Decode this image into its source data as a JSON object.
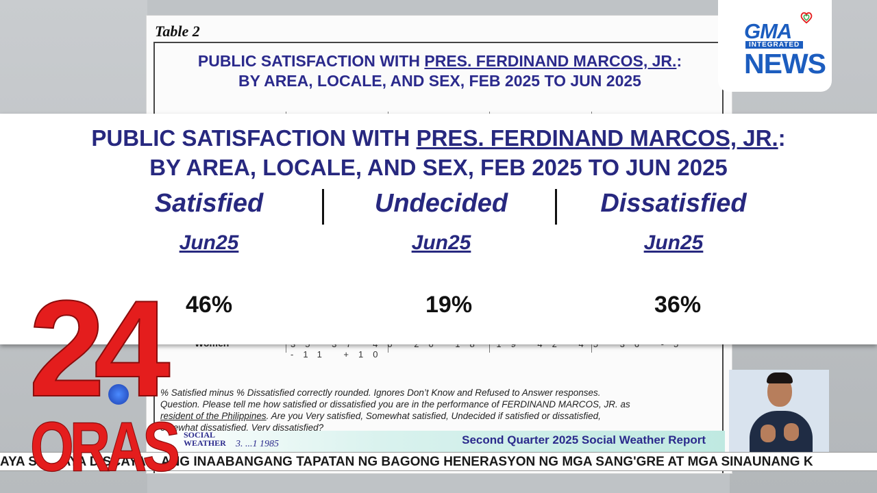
{
  "document": {
    "caption": "Table 2",
    "title_line1_prefix": "PUBLIC SATISFACTION WITH ",
    "title_line1_name": "PRES. FERDINAND MARCOS, JR.",
    "title_line1_suffix": ":",
    "title_line2": "BY AREA, LOCALE, AND SEX, FEB 2025 TO JUN 2025",
    "row_label": "Women",
    "row_values": "35  37  40  20  18  19  42  45  36  -5  -11  +10",
    "note_line1": "% Satisfied minus % Dissatisfied correctly rounded. Ignores Don’t Know and Refused to Answer responses.",
    "note_line2": "Question. Please tell me how satisfied or dissatisfied you are in the performance of FERDINAND MARCOS, JR. as",
    "note_line3_underlined": "resident of the Philippines",
    "note_line3_rest": ". Are you Very satisfied, Somewhat satisfied, Undecided if satisfied or dissatisfied,",
    "note_line4": "omewhat dissatisfied, Very dissatisfied?",
    "footer_title": "Second Quarter 2025 Social Weather Report",
    "footer_logo_line1": "SOCIAL",
    "footer_logo_line2": "WEATHER",
    "footer_signature": "3. ...1 1985"
  },
  "gma_logo": {
    "line1": "GMA",
    "line2": "INTEGRATED",
    "line3": "NEWS"
  },
  "overlay": {
    "title_line1_prefix": "PUBLIC SATISFACTION WITH ",
    "title_line1_name": "PRES. FERDINAND MARCOS, JR.",
    "title_line1_suffix": ":",
    "title_line2": "BY AREA, LOCALE, AND SEX, FEB 2025 TO JUN 2025",
    "columns": [
      {
        "label": "Satisfied",
        "period": "Jun25",
        "value": "46%"
      },
      {
        "label": "Undecided",
        "period": "Jun25",
        "value": "19%"
      },
      {
        "label": "Dissatisfied",
        "period": "Jun25",
        "value": "36%"
      }
    ]
  },
  "program_logo": {
    "number": "24",
    "word": "ORAS"
  },
  "ticker": {
    "items": [
      "AYA SA",
      "AYA DISCAYA",
      "ANG INAABANGANG TAPATAN NG BAGONG HENERASYON NG MGA SANG'GRE AT MGA SINAUNANG K"
    ]
  },
  "colors": {
    "title_blue": "#27287f",
    "logo_red": "#e41d1d",
    "gma_blue": "#1c5dbf"
  }
}
